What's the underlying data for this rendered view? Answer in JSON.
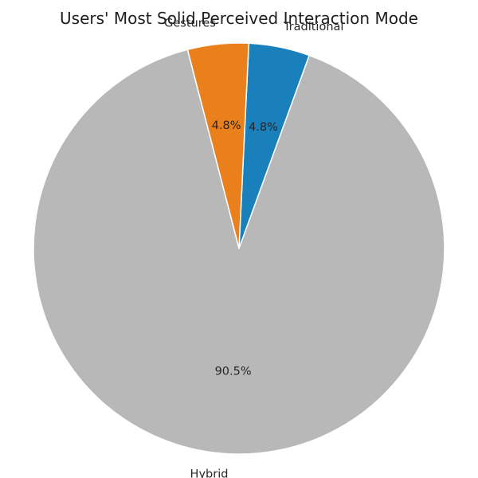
{
  "chart_data": {
    "type": "pie",
    "title": "Users' Most Solid Perceived Interaction Mode",
    "categories": [
      "Traditional",
      "Gestures",
      "Hybrid"
    ],
    "values": [
      4.8,
      4.8,
      90.5
    ],
    "percent_labels": [
      "4.8%",
      "4.8%",
      "90.5%"
    ],
    "colors": [
      "#1a80bb",
      "#ea801c",
      "#b8b8b8"
    ],
    "start_angle_deg": 70,
    "direction": "counterclockwise",
    "legend": "none"
  }
}
